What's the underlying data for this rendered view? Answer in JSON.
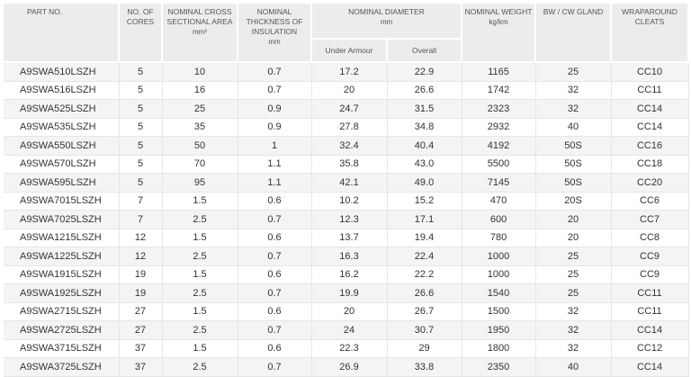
{
  "headers": {
    "part_no": "PART NO.",
    "cores": "NO. OF CORES",
    "area": "NOMINAL CROSS SECTIONAL AREA",
    "area_unit": "mm²",
    "insulation": "NOMINAL THICKNESS OF INSULATION",
    "insulation_unit": "mm",
    "diameter": "NOMINAL DIAMETER",
    "diameter_unit": "mm",
    "under_armour": "Under Armour",
    "overall": "Overall",
    "weight": "NOMINAL WEIGHT",
    "weight_unit": "kg/km",
    "gland": "BW / CW GLAND",
    "cleats": "WRAPAROUND CLEATS"
  },
  "rows": [
    [
      "A9SWA510LSZH",
      "5",
      "10",
      "0.7",
      "17.2",
      "22.9",
      "1165",
      "25",
      "CC10"
    ],
    [
      "A9SWA516LSZH",
      "5",
      "16",
      "0.7",
      "20",
      "26.6",
      "1742",
      "32",
      "CC11"
    ],
    [
      "A9SWA525LSZH",
      "5",
      "25",
      "0.9",
      "24.7",
      "31.5",
      "2323",
      "32",
      "CC14"
    ],
    [
      "A9SWA535LSZH",
      "5",
      "35",
      "0.9",
      "27.8",
      "34.8",
      "2932",
      "40",
      "CC14"
    ],
    [
      "A9SWA550LSZH",
      "5",
      "50",
      "1",
      "32.4",
      "40.4",
      "4192",
      "50S",
      "CC16"
    ],
    [
      "A9SWA570LSZH",
      "5",
      "70",
      "1.1",
      "35.8",
      "43.0",
      "5500",
      "50S",
      "CC18"
    ],
    [
      "A9SWA595LSZH",
      "5",
      "95",
      "1.1",
      "42.1",
      "49.0",
      "7145",
      "50S",
      "CC20"
    ],
    [
      "A9SWA7015LSZH",
      "7",
      "1.5",
      "0.6",
      "10.2",
      "15.2",
      "470",
      "20S",
      "CC6"
    ],
    [
      "A9SWA7025LSZH",
      "7",
      "2.5",
      "0.7",
      "12.3",
      "17.1",
      "600",
      "20",
      "CC7"
    ],
    [
      "A9SWA1215LSZH",
      "12",
      "1.5",
      "0.6",
      "13.7",
      "19.4",
      "780",
      "20",
      "CC8"
    ],
    [
      "A9SWA1225LSZH",
      "12",
      "2.5",
      "0.7",
      "16.3",
      "22.4",
      "1000",
      "25",
      "CC9"
    ],
    [
      "A9SWA1915LSZH",
      "19",
      "1.5",
      "0.6",
      "16.2",
      "22.2",
      "1000",
      "25",
      "CC9"
    ],
    [
      "A9SWA1925LSZH",
      "19",
      "2.5",
      "0.7",
      "19.9",
      "26.6",
      "1540",
      "25",
      "CC11"
    ],
    [
      "A9SWA2715LSZH",
      "27",
      "1.5",
      "0.6",
      "20",
      "26.7",
      "1500",
      "32",
      "CC11"
    ],
    [
      "A9SWA2725LSZH",
      "27",
      "2.5",
      "0.7",
      "24",
      "30.7",
      "1950",
      "32",
      "CC14"
    ],
    [
      "A9SWA3715LSZH",
      "37",
      "1.5",
      "0.6",
      "22.3",
      "29",
      "1800",
      "32",
      "CC12"
    ],
    [
      "A9SWA3725LSZH",
      "37",
      "2.5",
      "0.7",
      "26.9",
      "33.8",
      "2350",
      "40",
      "CC14"
    ]
  ]
}
